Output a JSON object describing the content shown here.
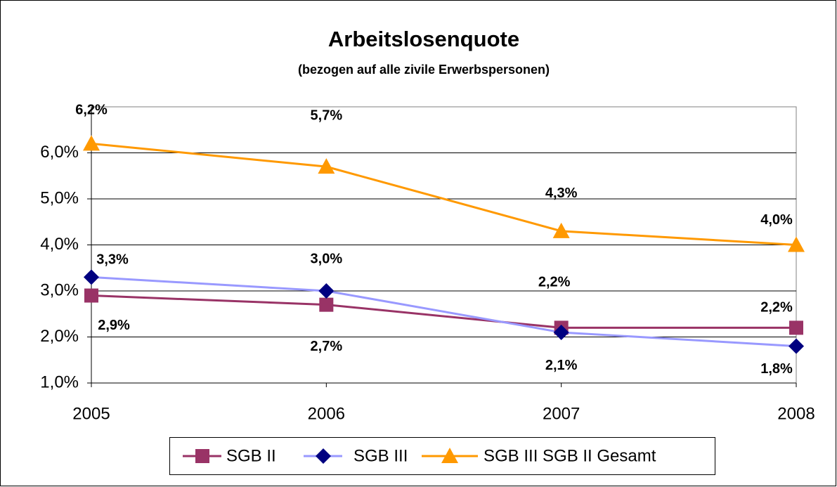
{
  "chart_data": {
    "type": "line",
    "title": "Arbeitslosenquote",
    "subtitle": "(bezogen auf alle zivile Erwerbspersonen)",
    "categories": [
      "2005",
      "2006",
      "2007",
      "2008"
    ],
    "series": [
      {
        "name": "SGB II",
        "color": "#993366",
        "marker_color": "#993366",
        "marker": "square",
        "values": [
          2.9,
          2.7,
          2.2,
          2.2
        ],
        "value_labels": [
          "2,9%",
          "2,7%",
          "2,2%",
          "2,2%"
        ]
      },
      {
        "name": "SGB III",
        "color": "#9999ff",
        "marker_color": "#000080",
        "marker": "diamond",
        "values": [
          3.3,
          3.0,
          2.1,
          1.8
        ],
        "value_labels": [
          "3,3%",
          "3,0%",
          "2,1%",
          "1,8%"
        ]
      },
      {
        "name": "SGB III SGB II Gesamt",
        "color": "#ff9900",
        "marker_color": "#ff9900",
        "marker": "triangle",
        "values": [
          6.2,
          5.7,
          4.3,
          4.0
        ],
        "value_labels": [
          "6,2%",
          "5,7%",
          "4,3%",
          "4,0%"
        ]
      }
    ],
    "ylim": [
      1,
      7
    ],
    "yticks": [
      {
        "value": 1,
        "label": "1,0%"
      },
      {
        "value": 2,
        "label": "2,0%"
      },
      {
        "value": 3,
        "label": "3,0%"
      },
      {
        "value": 4,
        "label": "4,0%"
      },
      {
        "value": 5,
        "label": "5,0%"
      },
      {
        "value": 6,
        "label": "6,0%"
      }
    ],
    "grid": true,
    "legend": "bottom"
  }
}
